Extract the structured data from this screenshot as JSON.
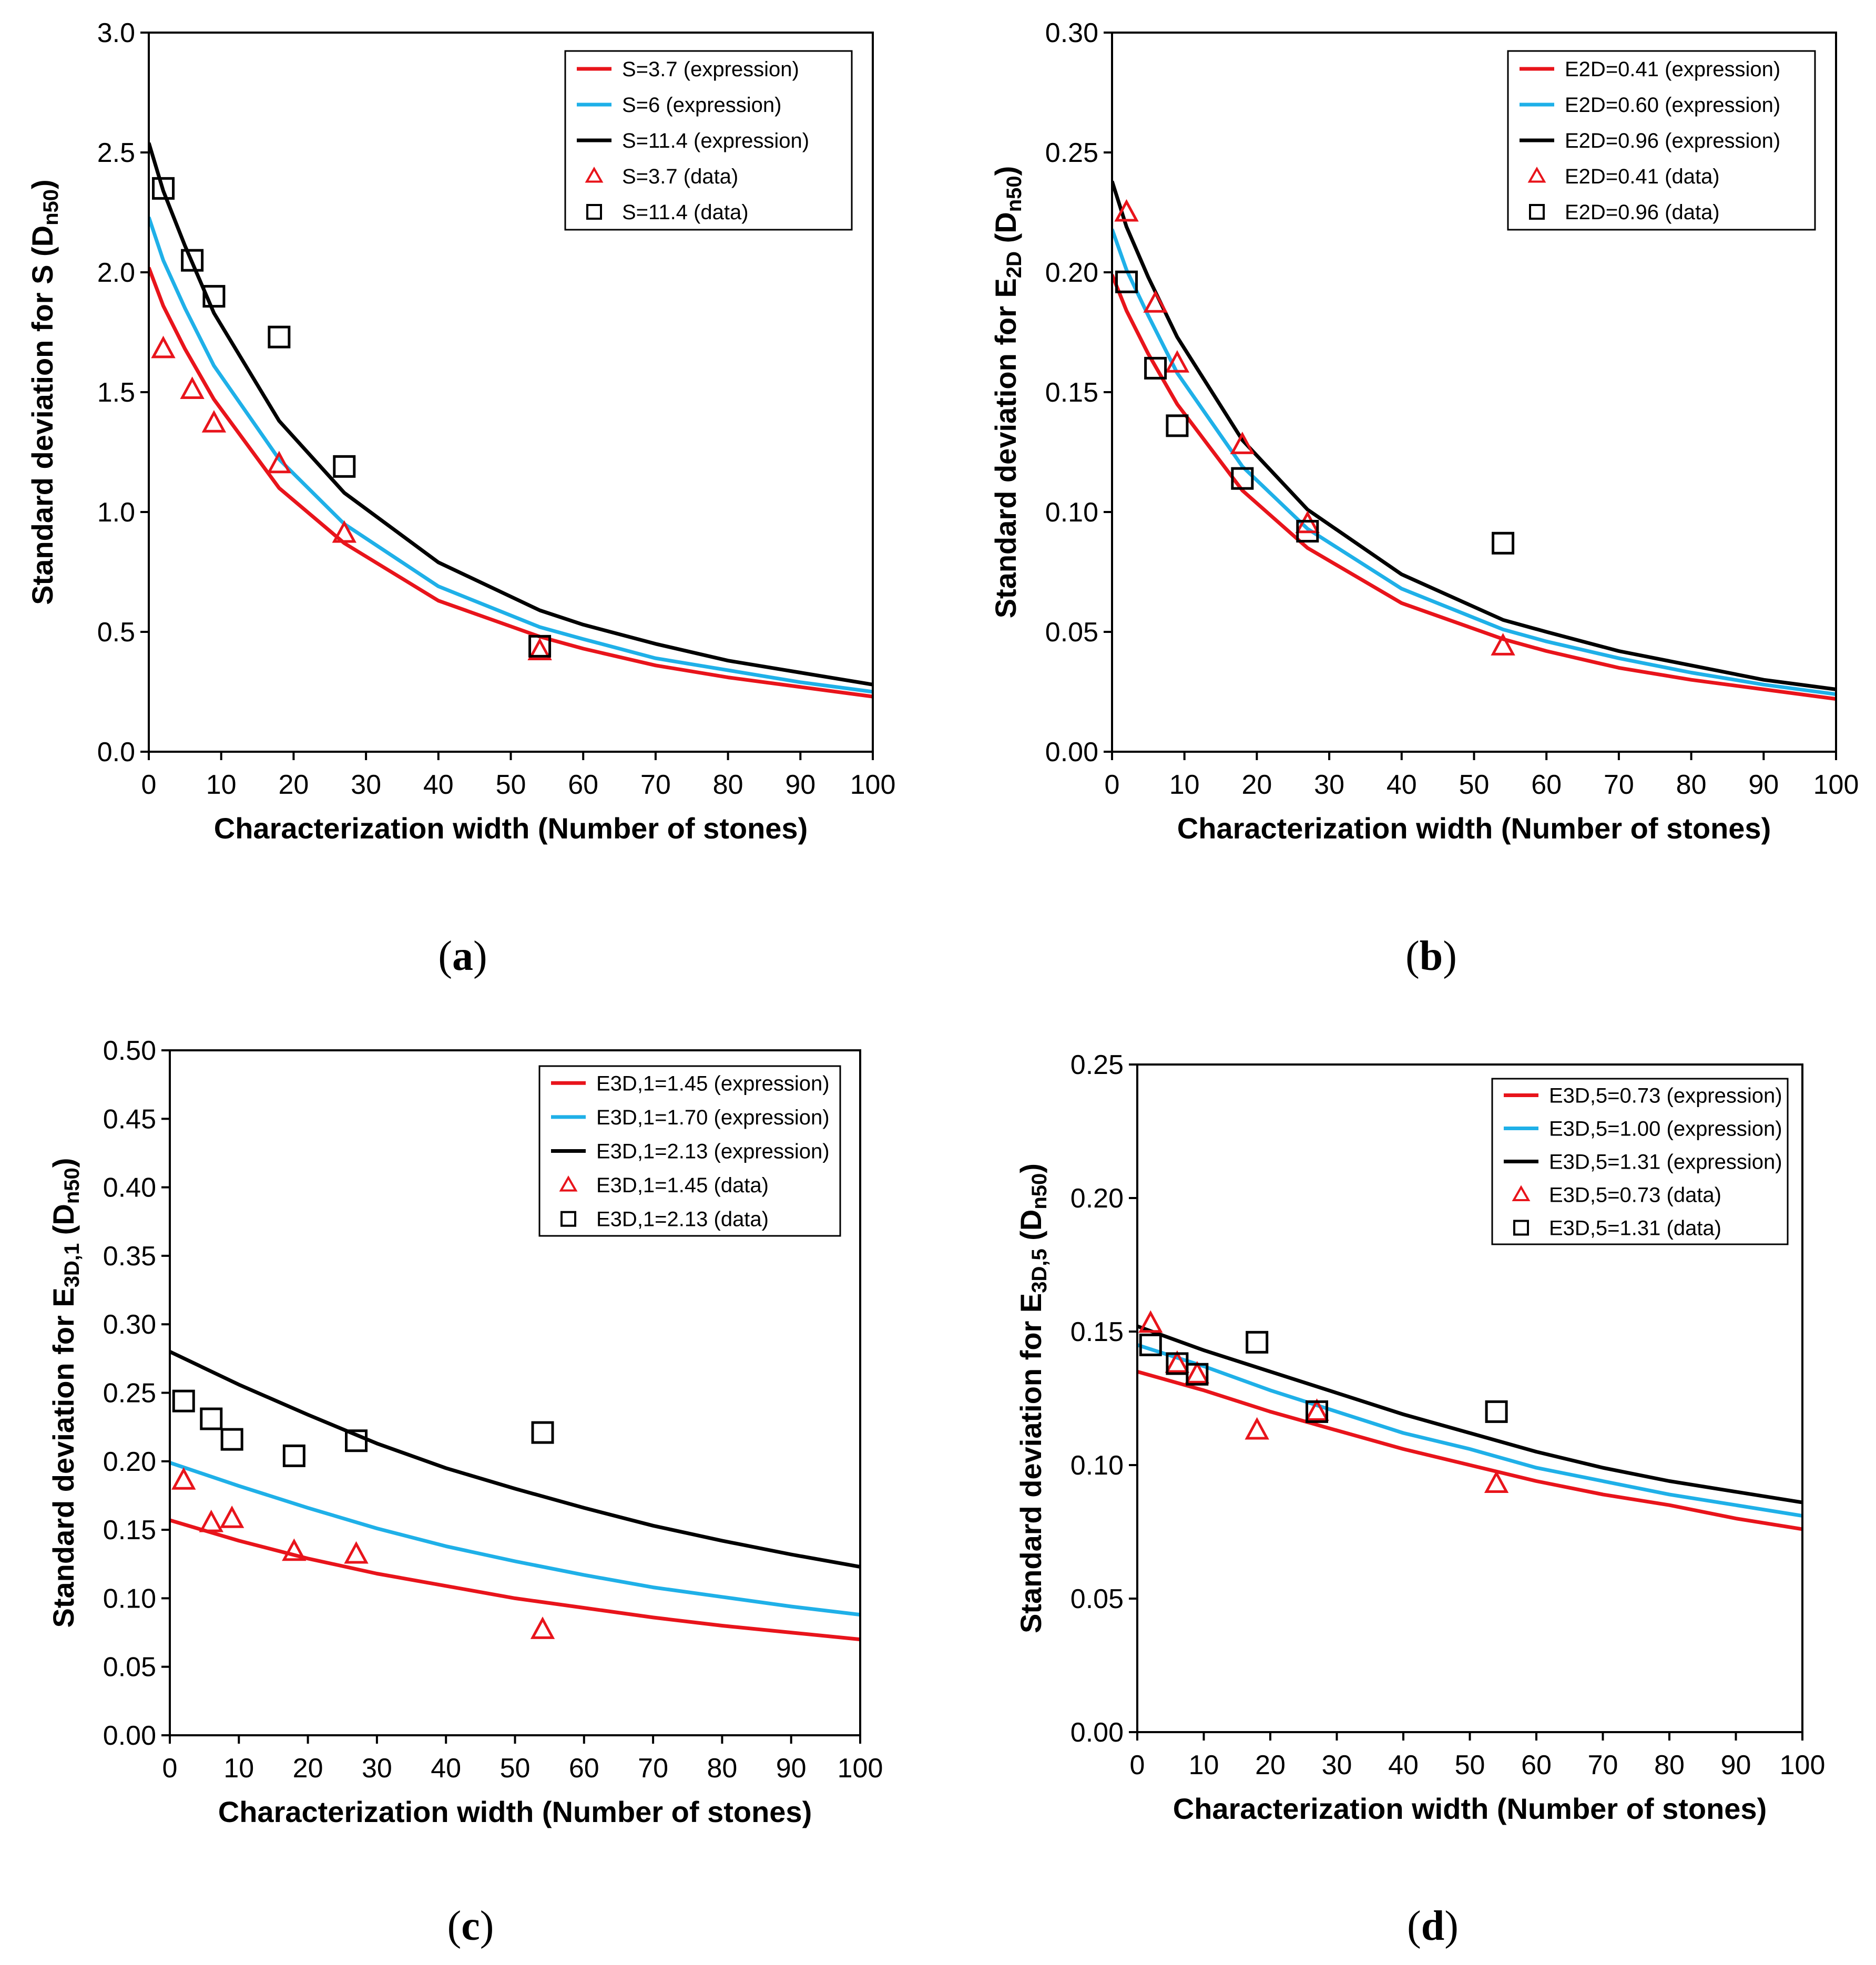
{
  "chart_data": [
    {
      "type": "line",
      "panel_label": "a",
      "title": "",
      "xlabel": "Characterization width (Number of stones)",
      "ylabel_main": "Standard deviation for S (D",
      "ylabel_sub": "n50",
      "ylabel_close": ")",
      "xlim": [
        0,
        100
      ],
      "ylim": [
        0,
        3.0
      ],
      "xticks": [
        0,
        10,
        20,
        30,
        40,
        50,
        60,
        70,
        80,
        90,
        100
      ],
      "yticks": [
        "0.0",
        "0.5",
        "1.0",
        "1.5",
        "2.0",
        "2.5",
        "3.0"
      ],
      "legend_position": "top-right",
      "series": [
        {
          "name": "S=3.7 (expression)",
          "kind": "line",
          "color": "#e8141b",
          "x": [
            0,
            2,
            5,
            9,
            18,
            27,
            40,
            54,
            60,
            70,
            80,
            90,
            100
          ],
          "y": [
            2.02,
            1.86,
            1.68,
            1.47,
            1.1,
            0.87,
            0.63,
            0.48,
            0.43,
            0.36,
            0.31,
            0.27,
            0.23
          ]
        },
        {
          "name": "S=6 (expression)",
          "kind": "line",
          "color": "#1fb0e8",
          "x": [
            0,
            2,
            5,
            9,
            18,
            27,
            40,
            54,
            60,
            70,
            80,
            90,
            100
          ],
          "y": [
            2.23,
            2.05,
            1.85,
            1.61,
            1.22,
            0.95,
            0.69,
            0.52,
            0.47,
            0.39,
            0.34,
            0.29,
            0.25
          ]
        },
        {
          "name": "S=11.4 (expression)",
          "kind": "line",
          "color": "#000000",
          "x": [
            0,
            2,
            5,
            9,
            18,
            27,
            40,
            54,
            60,
            70,
            80,
            90,
            100
          ],
          "y": [
            2.54,
            2.34,
            2.11,
            1.83,
            1.38,
            1.08,
            0.79,
            0.59,
            0.53,
            0.45,
            0.38,
            0.33,
            0.28
          ]
        },
        {
          "name": "S=3.7 (data)",
          "kind": "marker",
          "marker": "triangle",
          "color": "#e8141b",
          "x": [
            2,
            6,
            9,
            18,
            27,
            54
          ],
          "y": [
            1.68,
            1.51,
            1.37,
            1.2,
            0.91,
            0.42
          ]
        },
        {
          "name": "S=11.4 (data)",
          "kind": "marker",
          "marker": "square",
          "color": "#000000",
          "x": [
            2,
            6,
            9,
            18,
            27,
            54
          ],
          "y": [
            2.35,
            2.05,
            1.9,
            1.73,
            1.19,
            0.44
          ]
        }
      ]
    },
    {
      "type": "line",
      "panel_label": "b",
      "title": "",
      "xlabel": "Characterization width (Number of stones)",
      "ylabel_main": "Standard deviation for E",
      "ylabel_sub": "2D",
      "ylabel_mid": " (D",
      "ylabel_sub2": "n50",
      "ylabel_close": ")",
      "xlim": [
        0,
        100
      ],
      "ylim": [
        0,
        0.3
      ],
      "xticks": [
        0,
        10,
        20,
        30,
        40,
        50,
        60,
        70,
        80,
        90,
        100
      ],
      "yticks": [
        "0.00",
        "0.05",
        "0.10",
        "0.15",
        "0.20",
        "0.25",
        "0.30"
      ],
      "legend_position": "top-right",
      "series": [
        {
          "name": "E2D=0.41 (expression)",
          "kind": "line",
          "color": "#e8141b",
          "x": [
            0,
            2,
            5,
            9,
            18,
            27,
            40,
            54,
            60,
            70,
            80,
            90,
            100
          ],
          "y": [
            0.199,
            0.184,
            0.166,
            0.145,
            0.109,
            0.085,
            0.062,
            0.047,
            0.042,
            0.035,
            0.03,
            0.026,
            0.022
          ]
        },
        {
          "name": "E2D=0.60 (expression)",
          "kind": "line",
          "color": "#1fb0e8",
          "x": [
            0,
            2,
            5,
            9,
            18,
            27,
            40,
            54,
            60,
            70,
            80,
            90,
            100
          ],
          "y": [
            0.218,
            0.201,
            0.182,
            0.158,
            0.119,
            0.093,
            0.068,
            0.051,
            0.046,
            0.039,
            0.033,
            0.028,
            0.024
          ]
        },
        {
          "name": "E2D=0.96 (expression)",
          "kind": "line",
          "color": "#000000",
          "x": [
            0,
            2,
            5,
            9,
            18,
            27,
            40,
            54,
            60,
            70,
            80,
            90,
            100
          ],
          "y": [
            0.238,
            0.219,
            0.198,
            0.173,
            0.13,
            0.101,
            0.074,
            0.055,
            0.05,
            0.042,
            0.036,
            0.03,
            0.026
          ]
        },
        {
          "name": "E2D=0.41 (data)",
          "kind": "marker",
          "marker": "triangle",
          "color": "#e8141b",
          "x": [
            2,
            6,
            9,
            18,
            27,
            54
          ],
          "y": [
            0.225,
            0.187,
            0.162,
            0.128,
            0.095,
            0.044
          ]
        },
        {
          "name": "E2D=0.96 (data)",
          "kind": "marker",
          "marker": "square",
          "color": "#000000",
          "x": [
            2,
            6,
            9,
            18,
            27,
            54
          ],
          "y": [
            0.196,
            0.16,
            0.136,
            0.114,
            0.092,
            0.087
          ]
        }
      ]
    },
    {
      "type": "line",
      "panel_label": "c",
      "title": "",
      "xlabel": "Characterization width (Number of stones)",
      "ylabel_main": "Standard deviation for E",
      "ylabel_sub": "3D,1",
      "ylabel_mid": " (D",
      "ylabel_sub2": "n50",
      "ylabel_close": ")",
      "xlim": [
        0,
        100
      ],
      "ylim": [
        0,
        0.5
      ],
      "xticks": [
        0,
        10,
        20,
        30,
        40,
        50,
        60,
        70,
        80,
        90,
        100
      ],
      "yticks": [
        "0.00",
        "0.05",
        "0.10",
        "0.15",
        "0.20",
        "0.25",
        "0.30",
        "0.35",
        "0.40",
        "0.45",
        "0.50"
      ],
      "legend_position": "top-right",
      "series": [
        {
          "name": "E3D,1=1.45 (expression)",
          "kind": "line",
          "color": "#e8141b",
          "x": [
            0,
            10,
            20,
            30,
            40,
            50,
            60,
            70,
            80,
            90,
            100
          ],
          "y": [
            0.157,
            0.142,
            0.129,
            0.118,
            0.109,
            0.1,
            0.093,
            0.086,
            0.08,
            0.075,
            0.07
          ]
        },
        {
          "name": "E3D,1=1.70 (expression)",
          "kind": "line",
          "color": "#1fb0e8",
          "x": [
            0,
            10,
            20,
            30,
            40,
            50,
            60,
            70,
            80,
            90,
            100
          ],
          "y": [
            0.199,
            0.182,
            0.166,
            0.151,
            0.138,
            0.127,
            0.117,
            0.108,
            0.101,
            0.094,
            0.088
          ]
        },
        {
          "name": "E3D,1=2.13 (expression)",
          "kind": "line",
          "color": "#000000",
          "x": [
            0,
            10,
            20,
            30,
            40,
            50,
            60,
            70,
            80,
            90,
            100
          ],
          "y": [
            0.28,
            0.256,
            0.234,
            0.213,
            0.195,
            0.18,
            0.166,
            0.153,
            0.142,
            0.132,
            0.123
          ]
        },
        {
          "name": "E3D,1=1.45 (data)",
          "kind": "marker",
          "marker": "triangle",
          "color": "#e8141b",
          "x": [
            2,
            6,
            9,
            18,
            27,
            54
          ],
          "y": [
            0.186,
            0.155,
            0.158,
            0.134,
            0.132,
            0.077
          ]
        },
        {
          "name": "E3D,1=2.13 (data)",
          "kind": "marker",
          "marker": "square",
          "color": "#000000",
          "x": [
            2,
            6,
            9,
            18,
            27,
            54
          ],
          "y": [
            0.244,
            0.231,
            0.216,
            0.204,
            0.215,
            0.221
          ]
        }
      ]
    },
    {
      "type": "line",
      "panel_label": "d",
      "title": "",
      "xlabel": "Characterization width (Number of stones)",
      "ylabel_main": "Standard deviation for E",
      "ylabel_sub": "3D,5",
      "ylabel_mid": " (D",
      "ylabel_sub2": "n50",
      "ylabel_close": ")",
      "xlim": [
        0,
        100
      ],
      "ylim": [
        0,
        0.25
      ],
      "xticks": [
        0,
        10,
        20,
        30,
        40,
        50,
        60,
        70,
        80,
        90,
        100
      ],
      "yticks": [
        "0.00",
        "0.05",
        "0.10",
        "0.15",
        "0.20",
        "0.25"
      ],
      "legend_position": "top-right",
      "series": [
        {
          "name": "E3D,5=0.73 (expression)",
          "kind": "line",
          "color": "#e8141b",
          "x": [
            0,
            10,
            20,
            30,
            40,
            50,
            60,
            70,
            80,
            90,
            100
          ],
          "y": [
            0.135,
            0.128,
            0.12,
            0.113,
            0.106,
            0.1,
            0.094,
            0.089,
            0.085,
            0.08,
            0.076
          ]
        },
        {
          "name": "E3D,5=1.00 (expression)",
          "kind": "line",
          "color": "#1fb0e8",
          "x": [
            0,
            10,
            20,
            30,
            40,
            50,
            60,
            70,
            80,
            90,
            100
          ],
          "y": [
            0.145,
            0.137,
            0.128,
            0.12,
            0.112,
            0.106,
            0.099,
            0.094,
            0.089,
            0.085,
            0.081
          ]
        },
        {
          "name": "E3D,5=1.31 (expression)",
          "kind": "line",
          "color": "#000000",
          "x": [
            0,
            10,
            20,
            30,
            40,
            50,
            60,
            70,
            80,
            90,
            100
          ],
          "y": [
            0.152,
            0.143,
            0.135,
            0.127,
            0.119,
            0.112,
            0.105,
            0.099,
            0.094,
            0.09,
            0.086
          ]
        },
        {
          "name": "E3D,5=0.73 (data)",
          "kind": "marker",
          "marker": "triangle",
          "color": "#e8141b",
          "x": [
            2,
            6,
            9,
            18,
            27,
            54
          ],
          "y": [
            0.153,
            0.138,
            0.134,
            0.113,
            0.12,
            0.093
          ]
        },
        {
          "name": "E3D,5=1.31 (data)",
          "kind": "marker",
          "marker": "square",
          "color": "#000000",
          "x": [
            2,
            6,
            9,
            18,
            27,
            54
          ],
          "y": [
            0.145,
            0.138,
            0.134,
            0.146,
            0.12,
            0.12
          ]
        }
      ]
    }
  ]
}
